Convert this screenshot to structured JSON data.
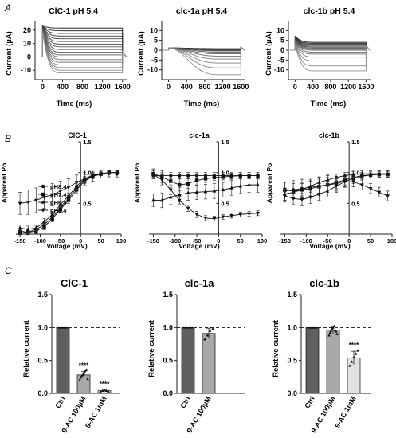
{
  "panel_letters": [
    "A",
    "B",
    "C"
  ],
  "chart_data": [
    {
      "type": "line",
      "panel": "A",
      "title": "ClC-1 pH 5.4",
      "xlabel": "Time (ms)",
      "ylabel": "Current (µA)",
      "xlim": [
        -150,
        1700
      ],
      "ylim": [
        -17,
        27
      ],
      "xticks": [
        "0",
        "400",
        "800",
        "1200",
        "1600"
      ],
      "yticks": [
        "20",
        "10",
        "0",
        "-10"
      ],
      "trace_kind": "decay_up",
      "steady_levels": [
        21.5,
        19.5,
        17.5,
        15.5,
        13.5,
        11.5,
        9.5,
        7.5,
        5.5,
        3.5,
        1.5,
        0,
        -2,
        -4,
        -6,
        -8,
        -10,
        -12
      ],
      "peak_level": 23
    },
    {
      "type": "line",
      "panel": "A",
      "title": "clc-1a pH 5.4",
      "xlabel": "Time (ms)",
      "ylabel": "Current (µA)",
      "xlim": [
        -150,
        1700
      ],
      "ylim": [
        -15,
        15
      ],
      "xticks": [
        "0",
        "400",
        "800",
        "1200",
        "1600"
      ],
      "yticks": [
        "10",
        "5",
        "0",
        "-5",
        "-10"
      ],
      "trace_kind": "activate_down",
      "steady_levels": [
        0.8,
        0.6,
        0.4,
        0.2,
        0,
        -0.4,
        -1,
        -1.8,
        -3,
        -4.5,
        -6.5,
        -9,
        -12.5
      ],
      "peak_level": 1.2
    },
    {
      "type": "line",
      "panel": "A",
      "title": "clc-1b pH 5.4",
      "xlabel": "Time (ms)",
      "ylabel": "Current (µA)",
      "xlim": [
        -150,
        1700
      ],
      "ylim": [
        -15,
        15
      ],
      "xticks": [
        "0",
        "400",
        "800",
        "1200",
        "1600"
      ],
      "yticks": [
        "10",
        "5",
        "0",
        "-5",
        "-10"
      ],
      "trace_kind": "decay_up",
      "steady_levels": [
        4,
        3.5,
        3,
        2.5,
        2,
        1.5,
        1,
        0.5,
        0,
        -1,
        -2,
        -3.5,
        -5.5,
        -8,
        -10.5
      ],
      "peak_level": 7
    },
    {
      "type": "scatter",
      "panel": "B",
      "title": "ClC-1",
      "xlabel": "Voltage (mV)",
      "ylabel": "Apparent Po",
      "xlim": [
        -160,
        100
      ],
      "ylim": [
        0,
        1.5
      ],
      "xticks": [
        "-150",
        "-100",
        "-50",
        "0",
        "50",
        "100"
      ],
      "yticks": [
        "1.5",
        "1.0",
        "0.5"
      ],
      "legend": "left",
      "x": [
        -150,
        -130,
        -110,
        -90,
        -70,
        -50,
        -30,
        -10,
        10,
        30,
        50,
        70,
        90
      ],
      "series": [
        {
          "name": "pH8.4",
          "marker": "circle",
          "values": [
            0.05,
            0.03,
            0.08,
            0.15,
            0.28,
            0.42,
            0.58,
            0.75,
            0.88,
            0.95,
            0.98,
            1.0,
            1.0
          ],
          "err": [
            0.04,
            0.04,
            0.05,
            0.05,
            0.05,
            0.05,
            0.05,
            0.05,
            0.04,
            0.04,
            0.03,
            0.03,
            0.03
          ]
        },
        {
          "name": "pH7.4",
          "marker": "square",
          "values": [
            0.02,
            0.03,
            0.05,
            0.12,
            0.25,
            0.4,
            0.55,
            0.72,
            0.86,
            0.94,
            0.98,
            1.0,
            1.0
          ],
          "err": [
            0.03,
            0.03,
            0.04,
            0.05,
            0.05,
            0.05,
            0.05,
            0.05,
            0.04,
            0.04,
            0.03,
            0.03,
            0.03
          ]
        },
        {
          "name": "pH6.4",
          "marker": "triangle-up",
          "values": [
            0.1,
            0.08,
            0.1,
            0.2,
            0.32,
            0.48,
            0.62,
            0.78,
            0.9,
            0.96,
            0.98,
            1.0,
            1.0
          ],
          "err": [
            0.05,
            0.05,
            0.05,
            0.05,
            0.05,
            0.05,
            0.05,
            0.05,
            0.04,
            0.04,
            0.03,
            0.03,
            0.03
          ]
        },
        {
          "name": "pH5.4",
          "marker": "triangle-down",
          "values": [
            0.5,
            0.52,
            0.55,
            0.6,
            0.64,
            0.7,
            0.76,
            0.84,
            0.9,
            0.94,
            0.97,
            0.98,
            0.97
          ],
          "err": [
            0.18,
            0.2,
            0.2,
            0.18,
            0.18,
            0.16,
            0.14,
            0.12,
            0.1,
            0.08,
            0.06,
            0.05,
            0.05
          ]
        }
      ]
    },
    {
      "type": "scatter",
      "panel": "B",
      "title": "clc-1a",
      "xlabel": "Voltage (mV)",
      "ylabel": "Apparent Po",
      "xlim": [
        -160,
        100
      ],
      "ylim": [
        0,
        1.5
      ],
      "xticks": [
        "-150",
        "-100",
        "-50",
        "0",
        "50",
        "100"
      ],
      "yticks": [
        "1.5",
        "1.0",
        "0.5"
      ],
      "x": [
        -150,
        -130,
        -110,
        -90,
        -70,
        -50,
        -30,
        -10,
        10,
        30,
        50,
        70,
        90
      ],
      "series": [
        {
          "name": "pH8.4",
          "marker": "circle",
          "values": [
            0.95,
            0.95,
            0.95,
            0.95,
            0.95,
            0.95,
            0.95,
            0.95,
            0.95,
            0.95,
            0.95,
            0.95,
            0.95
          ],
          "err": [
            0.05,
            0.05,
            0.05,
            0.05,
            0.05,
            0.05,
            0.05,
            0.05,
            0.05,
            0.05,
            0.05,
            0.05,
            0.05
          ]
        },
        {
          "name": "pH7.4",
          "marker": "square",
          "values": [
            0.98,
            0.93,
            0.86,
            0.8,
            0.82,
            0.87,
            0.9,
            0.92,
            0.93,
            0.94,
            0.95,
            0.95,
            0.95
          ],
          "err": [
            0.08,
            0.1,
            0.1,
            0.1,
            0.08,
            0.08,
            0.06,
            0.05,
            0.05,
            0.05,
            0.05,
            0.05,
            0.05
          ]
        },
        {
          "name": "pH6.4",
          "marker": "triangle-up",
          "values": [
            0.55,
            0.55,
            0.6,
            0.64,
            0.67,
            0.68,
            0.69,
            0.7,
            0.72,
            0.75,
            0.78,
            0.8,
            0.8
          ],
          "err": [
            0.1,
            0.12,
            0.12,
            0.12,
            0.12,
            0.12,
            0.12,
            0.12,
            0.12,
            0.12,
            0.12,
            0.12,
            0.12
          ]
        },
        {
          "name": "pH5.4",
          "marker": "triangle-down",
          "values": [
            0.97,
            0.88,
            0.72,
            0.55,
            0.42,
            0.32,
            0.26,
            0.25,
            0.28,
            0.3,
            0.32,
            0.33,
            0.34
          ],
          "err": [
            0.06,
            0.08,
            0.08,
            0.06,
            0.05,
            0.05,
            0.04,
            0.04,
            0.04,
            0.04,
            0.04,
            0.04,
            0.04
          ]
        }
      ]
    },
    {
      "type": "scatter",
      "panel": "B",
      "title": "clc-1b",
      "xlabel": "Voltage (mV)",
      "ylabel": "Apparent Po",
      "xlim": [
        -160,
        100
      ],
      "ylim": [
        0,
        1.5
      ],
      "xticks": [
        "-150",
        "-100",
        "-50",
        "0",
        "50",
        "100"
      ],
      "yticks": [
        "1.5",
        "1.0",
        "0.5"
      ],
      "x": [
        -150,
        -130,
        -110,
        -90,
        -70,
        -50,
        -30,
        -10,
        10,
        30,
        50,
        70,
        90
      ],
      "series": [
        {
          "name": "pH8.4",
          "marker": "circle",
          "values": [
            0.7,
            0.72,
            0.74,
            0.76,
            0.78,
            0.8,
            0.82,
            0.86,
            0.9,
            0.94,
            0.96,
            0.97,
            0.97
          ],
          "err": [
            0.15,
            0.15,
            0.15,
            0.15,
            0.15,
            0.15,
            0.12,
            0.1,
            0.08,
            0.06,
            0.05,
            0.05,
            0.05
          ]
        },
        {
          "name": "pH7.4",
          "marker": "square",
          "values": [
            0.72,
            0.7,
            0.72,
            0.74,
            0.77,
            0.8,
            0.84,
            0.88,
            0.92,
            0.95,
            0.96,
            0.97,
            0.97
          ],
          "err": [
            0.12,
            0.12,
            0.12,
            0.12,
            0.12,
            0.12,
            0.1,
            0.08,
            0.06,
            0.05,
            0.05,
            0.05,
            0.05
          ]
        },
        {
          "name": "pH6.4",
          "marker": "triangle-up",
          "values": [
            0.65,
            0.68,
            0.72,
            0.78,
            0.84,
            0.88,
            0.92,
            0.95,
            0.97,
            0.98,
            0.98,
            0.98,
            0.98
          ],
          "err": [
            0.1,
            0.1,
            0.1,
            0.1,
            0.08,
            0.08,
            0.06,
            0.05,
            0.05,
            0.05,
            0.05,
            0.05,
            0.05
          ]
        },
        {
          "name": "pH5.4",
          "marker": "triangle-down",
          "values": [
            0.62,
            0.58,
            0.56,
            0.6,
            0.65,
            0.7,
            0.78,
            0.85,
            0.85,
            0.8,
            0.74,
            0.68,
            0.62
          ],
          "err": [
            0.1,
            0.1,
            0.1,
            0.1,
            0.1,
            0.1,
            0.1,
            0.08,
            0.08,
            0.08,
            0.08,
            0.08,
            0.08
          ]
        }
      ]
    },
    {
      "type": "bar",
      "panel": "C",
      "title": "ClC-1",
      "ylabel": "Relative current",
      "ylim": [
        0,
        1.5
      ],
      "yticks": [
        "1.5",
        "1.0",
        "0.5",
        "0.0"
      ],
      "reference_line": 1.0,
      "categories": [
        "Ctrl",
        "9-AC 100µM",
        "9-AC 1mM"
      ],
      "values": [
        1.0,
        0.28,
        0.04
      ],
      "err": [
        0.0,
        0.05,
        0.01
      ],
      "fills": [
        "#5f5f5f",
        "#a9a9a9",
        "#e2e2e2"
      ],
      "significance": [
        "",
        "****",
        "****"
      ],
      "points": [
        [
          1.0,
          1.0,
          1.0,
          1.0,
          1.0,
          1.0
        ],
        [
          0.2,
          0.24,
          0.26,
          0.28,
          0.3,
          0.32,
          0.35,
          0.36,
          0.22
        ],
        [
          0.03,
          0.04,
          0.05,
          0.04,
          0.03
        ]
      ]
    },
    {
      "type": "bar",
      "panel": "C",
      "title": "clc-1a",
      "ylabel": "Relative current",
      "ylim": [
        0,
        1.5
      ],
      "yticks": [
        "1.5",
        "1.0",
        "0.5",
        "0.0"
      ],
      "reference_line": 1.0,
      "categories": [
        "Ctrl",
        "9-AC 100µM"
      ],
      "values": [
        1.0,
        0.91
      ],
      "err": [
        0.0,
        0.08
      ],
      "fills": [
        "#5f5f5f",
        "#a9a9a9"
      ],
      "significance": [
        "",
        ""
      ],
      "points": [
        [
          1.0,
          1.0,
          1.0,
          1.0
        ],
        [
          0.82,
          0.88,
          0.95,
          0.98
        ]
      ]
    },
    {
      "type": "bar",
      "panel": "C",
      "title": "clc-1b",
      "ylabel": "Relative current",
      "ylim": [
        0,
        1.5
      ],
      "yticks": [
        "1.5",
        "1.0",
        "0.5",
        "0.0"
      ],
      "reference_line": 1.0,
      "categories": [
        "Ctrl",
        "9-AC 100µM",
        "9-AC 1mM"
      ],
      "values": [
        1.0,
        0.96,
        0.54
      ],
      "err": [
        0.0,
        0.06,
        0.1
      ],
      "fills": [
        "#5f5f5f",
        "#a9a9a9",
        "#e2e2e2"
      ],
      "significance": [
        "",
        "",
        "****"
      ],
      "points": [
        [
          1.0,
          1.0,
          1.0,
          1.0,
          1.0
        ],
        [
          0.88,
          0.92,
          0.95,
          0.98,
          1.0,
          1.02,
          0.96,
          0.94,
          0.9
        ],
        [
          0.42,
          0.48,
          0.55,
          0.6,
          0.65
        ]
      ]
    }
  ]
}
